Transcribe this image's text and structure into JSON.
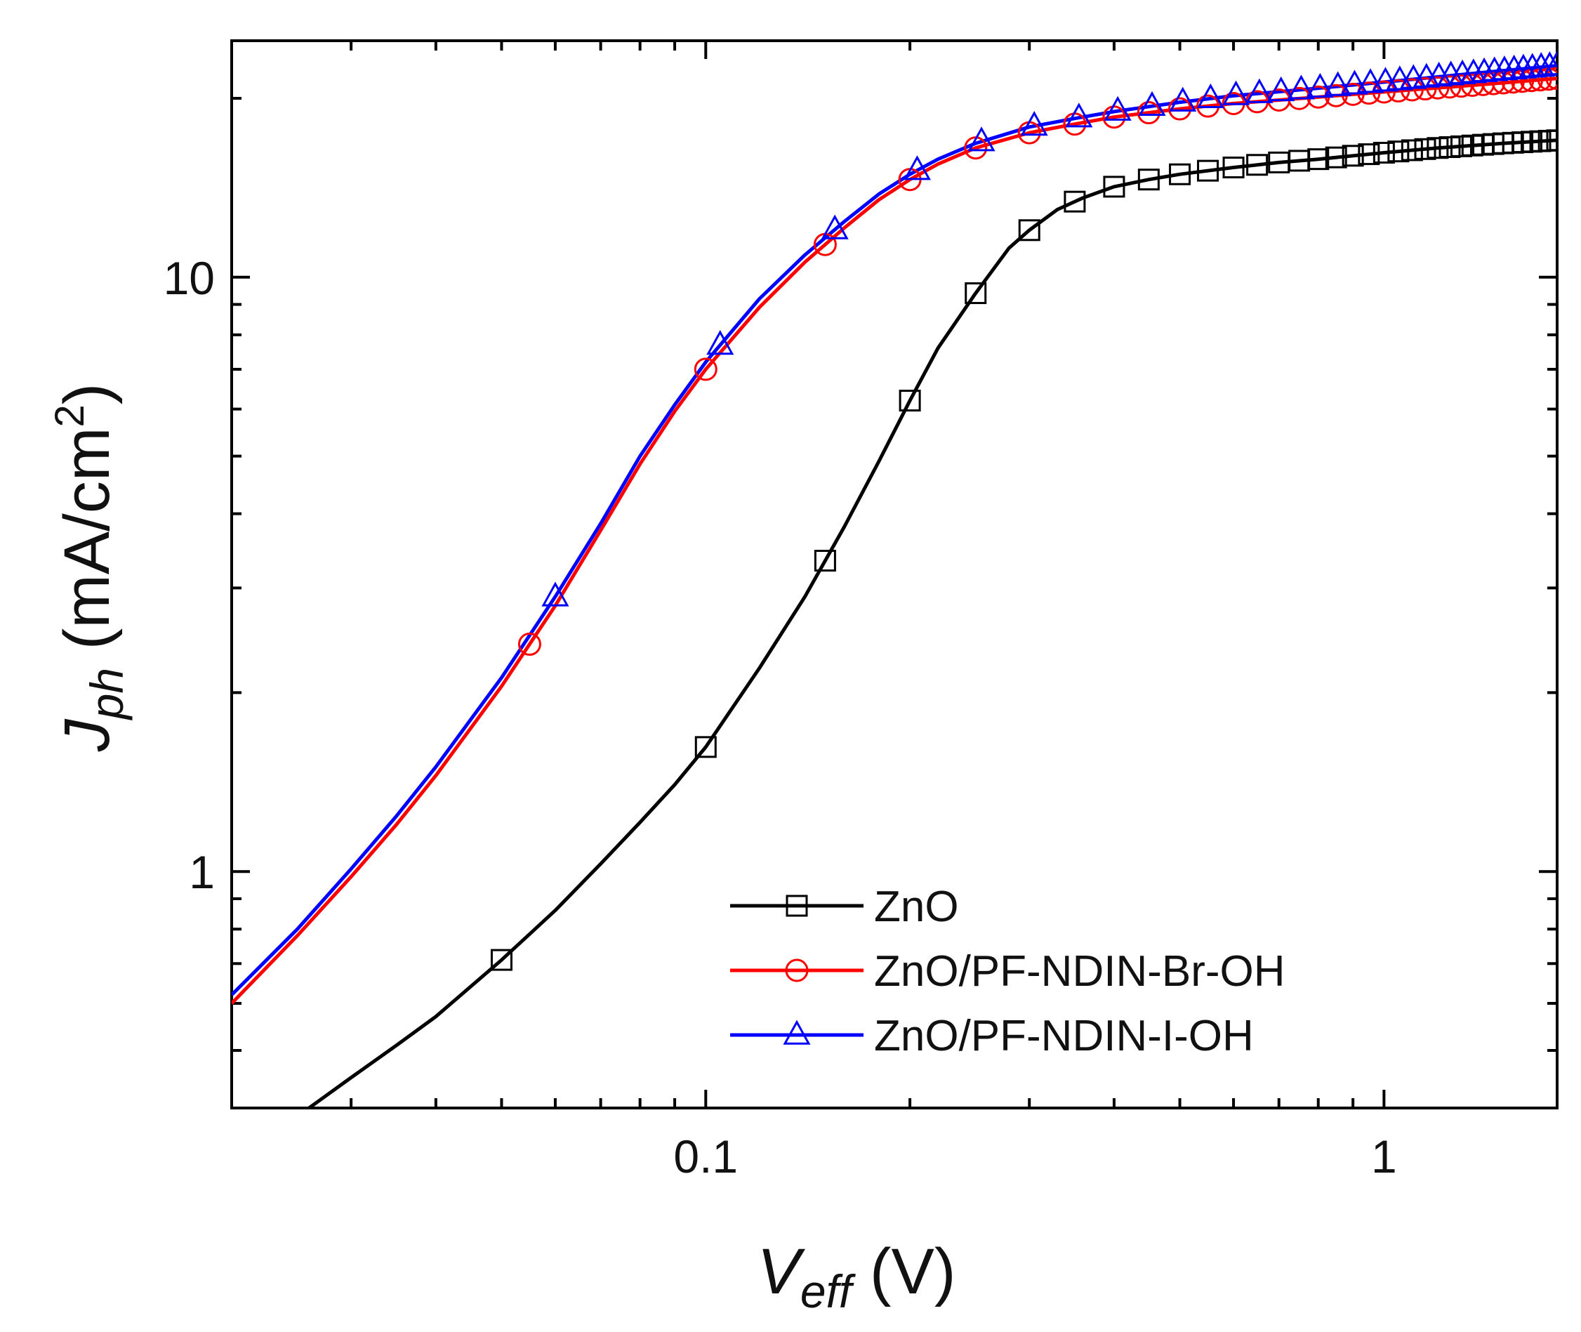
{
  "chart_data": {
    "type": "line",
    "x_scale": "log",
    "y_scale": "log",
    "xlabel": {
      "main": "V",
      "sub": "eff",
      "unit": "(V)"
    },
    "ylabel": {
      "main": "J",
      "sub": "ph",
      "unit_prefix": "(mA/cm",
      "unit_sup": "2",
      "unit_suffix": ")"
    },
    "xlim": [
      0.02,
      1.8
    ],
    "ylim": [
      0.4,
      25
    ],
    "x_ticks": [
      {
        "value": 0.1,
        "label": "0.1"
      },
      {
        "value": 1,
        "label": "1"
      }
    ],
    "y_ticks": [
      {
        "value": 1,
        "label": "1"
      },
      {
        "value": 10,
        "label": "10"
      }
    ],
    "legend_position": "bottom-right",
    "series": [
      {
        "name": "ZnO",
        "color": "#000000",
        "marker": "square",
        "line_points": [
          [
            0.026,
            0.4
          ],
          [
            0.03,
            0.45
          ],
          [
            0.035,
            0.51
          ],
          [
            0.04,
            0.57
          ],
          [
            0.05,
            0.71
          ],
          [
            0.06,
            0.86
          ],
          [
            0.07,
            1.03
          ],
          [
            0.08,
            1.21
          ],
          [
            0.09,
            1.4
          ],
          [
            0.1,
            1.62
          ],
          [
            0.12,
            2.2
          ],
          [
            0.14,
            2.9
          ],
          [
            0.16,
            3.8
          ],
          [
            0.18,
            4.9
          ],
          [
            0.2,
            6.2
          ],
          [
            0.22,
            7.6
          ],
          [
            0.25,
            9.4
          ],
          [
            0.28,
            11.2
          ],
          [
            0.3,
            12.0
          ],
          [
            0.33,
            13.0
          ],
          [
            0.36,
            13.6
          ],
          [
            0.4,
            14.2
          ],
          [
            0.45,
            14.6
          ],
          [
            0.5,
            14.9
          ],
          [
            0.6,
            15.3
          ],
          [
            0.7,
            15.6
          ],
          [
            0.8,
            15.8
          ],
          [
            1.0,
            16.2
          ],
          [
            1.2,
            16.5
          ],
          [
            1.5,
            16.8
          ],
          [
            1.8,
            17.0
          ]
        ],
        "marker_x": [
          0.05,
          0.1,
          0.15,
          0.2,
          0.25,
          0.3,
          0.35,
          0.4,
          0.45,
          0.5,
          0.55,
          0.6,
          0.65,
          0.7,
          0.75,
          0.8,
          0.85,
          0.9,
          0.95,
          1.0,
          1.05,
          1.1,
          1.15,
          1.2,
          1.25,
          1.3,
          1.35,
          1.4,
          1.45,
          1.5,
          1.55,
          1.6,
          1.65,
          1.7,
          1.75,
          1.8
        ]
      },
      {
        "name": "ZnO/PF-NDIN-Br-OH",
        "color": "#ff0000",
        "marker": "circle",
        "line_points": [
          [
            0.02,
            0.6
          ],
          [
            0.025,
            0.78
          ],
          [
            0.03,
            0.98
          ],
          [
            0.035,
            1.2
          ],
          [
            0.04,
            1.45
          ],
          [
            0.05,
            2.05
          ],
          [
            0.06,
            2.8
          ],
          [
            0.07,
            3.75
          ],
          [
            0.08,
            4.85
          ],
          [
            0.09,
            5.95
          ],
          [
            0.1,
            7.0
          ],
          [
            0.12,
            8.9
          ],
          [
            0.14,
            10.6
          ],
          [
            0.16,
            12.1
          ],
          [
            0.18,
            13.5
          ],
          [
            0.2,
            14.6
          ],
          [
            0.22,
            15.5
          ],
          [
            0.25,
            16.5
          ],
          [
            0.3,
            17.5
          ],
          [
            0.35,
            18.1
          ],
          [
            0.4,
            18.6
          ],
          [
            0.5,
            19.2
          ],
          [
            0.6,
            19.6
          ],
          [
            0.8,
            20.1
          ],
          [
            1.0,
            20.5
          ],
          [
            1.4,
            21.1
          ],
          [
            1.8,
            21.6
          ]
        ],
        "marker_x": [
          0.055,
          0.1,
          0.15,
          0.2,
          0.25,
          0.3,
          0.35,
          0.4,
          0.45,
          0.5,
          0.55,
          0.6,
          0.65,
          0.7,
          0.75,
          0.8,
          0.85,
          0.9,
          0.95,
          1.0,
          1.05,
          1.1,
          1.15,
          1.2,
          1.25,
          1.3,
          1.35,
          1.4,
          1.45,
          1.5,
          1.55,
          1.6,
          1.65,
          1.7,
          1.75,
          1.8
        ]
      },
      {
        "name": "ZnO/PF-NDIN-I-OH",
        "color": "#0000ff",
        "marker": "triangle",
        "line_points": [
          [
            0.02,
            0.62
          ],
          [
            0.025,
            0.8
          ],
          [
            0.03,
            1.01
          ],
          [
            0.035,
            1.24
          ],
          [
            0.04,
            1.5
          ],
          [
            0.05,
            2.12
          ],
          [
            0.06,
            2.9
          ],
          [
            0.07,
            3.85
          ],
          [
            0.08,
            5.0
          ],
          [
            0.09,
            6.1
          ],
          [
            0.1,
            7.2
          ],
          [
            0.12,
            9.2
          ],
          [
            0.14,
            10.9
          ],
          [
            0.16,
            12.4
          ],
          [
            0.18,
            13.8
          ],
          [
            0.2,
            14.9
          ],
          [
            0.22,
            15.8
          ],
          [
            0.25,
            16.8
          ],
          [
            0.3,
            17.9
          ],
          [
            0.35,
            18.5
          ],
          [
            0.4,
            19.0
          ],
          [
            0.5,
            19.7
          ],
          [
            0.6,
            20.2
          ],
          [
            0.8,
            20.8
          ],
          [
            1.0,
            21.3
          ],
          [
            1.4,
            22.1
          ],
          [
            1.8,
            22.7
          ]
        ],
        "marker_x": [
          0.06,
          0.105,
          0.155,
          0.205,
          0.255,
          0.305,
          0.355,
          0.405,
          0.455,
          0.505,
          0.555,
          0.605,
          0.655,
          0.705,
          0.755,
          0.805,
          0.855,
          0.905,
          0.955,
          1.005,
          1.055,
          1.105,
          1.155,
          1.205,
          1.255,
          1.305,
          1.355,
          1.405,
          1.455,
          1.505,
          1.555,
          1.605,
          1.655,
          1.705,
          1.755,
          1.8
        ]
      }
    ]
  }
}
